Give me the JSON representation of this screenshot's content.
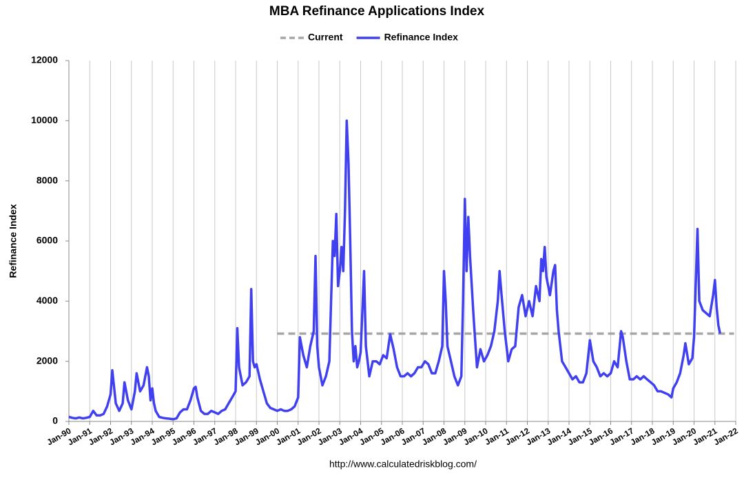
{
  "chart_data": {
    "type": "line",
    "title": "MBA Refinance Applications Index",
    "y_label": "Refinance Index",
    "source": "http://www.calculatedriskblog.com/",
    "ylim": [
      0,
      12000
    ],
    "yticks": [
      0,
      2000,
      4000,
      6000,
      8000,
      10000,
      12000
    ],
    "xlim": [
      "1990-01",
      "2022-01"
    ],
    "xticks": [
      {
        "value": "1990-01",
        "label": "Jan-90"
      },
      {
        "value": "1991-01",
        "label": "Jan-91"
      },
      {
        "value": "1992-01",
        "label": "Jan-92"
      },
      {
        "value": "1993-01",
        "label": "Jan-93"
      },
      {
        "value": "1994-01",
        "label": "Jan-94"
      },
      {
        "value": "1995-01",
        "label": "Jan-95"
      },
      {
        "value": "1996-01",
        "label": "Jan-96"
      },
      {
        "value": "1997-01",
        "label": "Jan-97"
      },
      {
        "value": "1998-01",
        "label": "Jan-98"
      },
      {
        "value": "1999-01",
        "label": "Jan-99"
      },
      {
        "value": "2000-01",
        "label": "Jan-00"
      },
      {
        "value": "2001-01",
        "label": "Jan-01"
      },
      {
        "value": "2002-01",
        "label": "Jan-02"
      },
      {
        "value": "2003-01",
        "label": "Jan-03"
      },
      {
        "value": "2004-01",
        "label": "Jan-04"
      },
      {
        "value": "2005-01",
        "label": "Jan-05"
      },
      {
        "value": "2006-01",
        "label": "Jan-06"
      },
      {
        "value": "2007-01",
        "label": "Jan-07"
      },
      {
        "value": "2008-01",
        "label": "Jan-08"
      },
      {
        "value": "2009-01",
        "label": "Jan-09"
      },
      {
        "value": "2010-01",
        "label": "Jan-10"
      },
      {
        "value": "2011-01",
        "label": "Jan-11"
      },
      {
        "value": "2012-01",
        "label": "Jan-12"
      },
      {
        "value": "2013-01",
        "label": "Jan-13"
      },
      {
        "value": "2014-01",
        "label": "Jan-14"
      },
      {
        "value": "2015-01",
        "label": "Jan-15"
      },
      {
        "value": "2016-01",
        "label": "Jan-16"
      },
      {
        "value": "2017-01",
        "label": "Jan-17"
      },
      {
        "value": "2018-01",
        "label": "Jan-18"
      },
      {
        "value": "2019-01",
        "label": "Jan-19"
      },
      {
        "value": "2020-01",
        "label": "Jan-20"
      },
      {
        "value": "2021-01",
        "label": "Jan-21"
      },
      {
        "value": "2022-01",
        "label": "Jan-22"
      }
    ],
    "grid": "x",
    "series": [
      {
        "name": "Current",
        "color": "#a6a6a6",
        "dashed": true,
        "x": [
          "2000-01",
          "2021-12"
        ],
        "values": [
          2920,
          2920
        ]
      },
      {
        "name": "Refinance Index",
        "color": "#4040f0",
        "dashed": false,
        "x": [
          "1990-01",
          "1990-03",
          "1990-05",
          "1990-07",
          "1990-09",
          "1990-11",
          "1991-01",
          "1991-03",
          "1991-05",
          "1991-07",
          "1991-09",
          "1991-11",
          "1992-01",
          "1992-02",
          "1992-04",
          "1992-06",
          "1992-08",
          "1992-09",
          "1992-11",
          "1993-01",
          "1993-03",
          "1993-04",
          "1993-06",
          "1993-08",
          "1993-10",
          "1993-11",
          "1993-12",
          "1994-01",
          "1994-02",
          "1994-03",
          "1994-05",
          "1994-07",
          "1994-09",
          "1994-11",
          "1995-01",
          "1995-03",
          "1995-05",
          "1995-07",
          "1995-09",
          "1995-11",
          "1996-01",
          "1996-02",
          "1996-03",
          "1996-05",
          "1996-07",
          "1996-09",
          "1996-11",
          "1997-01",
          "1997-03",
          "1997-05",
          "1997-07",
          "1997-09",
          "1997-11",
          "1998-01",
          "1998-02",
          "1998-03",
          "1998-05",
          "1998-07",
          "1998-09",
          "1998-10",
          "1998-11",
          "1998-12",
          "1999-01",
          "1999-03",
          "1999-05",
          "1999-07",
          "1999-09",
          "1999-11",
          "2000-01",
          "2000-03",
          "2000-05",
          "2000-07",
          "2000-09",
          "2000-11",
          "2001-01",
          "2001-02",
          "2001-04",
          "2001-06",
          "2001-08",
          "2001-10",
          "2001-11",
          "2001-12",
          "2002-01",
          "2002-03",
          "2002-05",
          "2002-07",
          "2002-08",
          "2002-09",
          "2002-10",
          "2002-11",
          "2002-12",
          "2003-01",
          "2003-02",
          "2003-03",
          "2003-04",
          "2003-05",
          "2003-06",
          "2003-07",
          "2003-08",
          "2003-09",
          "2003-10",
          "2003-11",
          "2003-12",
          "2004-01",
          "2004-03",
          "2004-04",
          "2004-06",
          "2004-08",
          "2004-10",
          "2004-12",
          "2005-02",
          "2005-04",
          "2005-06",
          "2005-08",
          "2005-10",
          "2005-12",
          "2006-02",
          "2006-04",
          "2006-06",
          "2006-08",
          "2006-10",
          "2006-12",
          "2007-02",
          "2007-04",
          "2007-06",
          "2007-08",
          "2007-10",
          "2007-12",
          "2008-01",
          "2008-02",
          "2008-03",
          "2008-05",
          "2008-07",
          "2008-09",
          "2008-11",
          "2008-12",
          "2009-01",
          "2009-02",
          "2009-03",
          "2009-04",
          "2009-06",
          "2009-08",
          "2009-10",
          "2009-12",
          "2010-02",
          "2010-04",
          "2010-06",
          "2010-08",
          "2010-09",
          "2010-10",
          "2010-12",
          "2011-02",
          "2011-04",
          "2011-06",
          "2011-08",
          "2011-10",
          "2011-12",
          "2012-02",
          "2012-04",
          "2012-06",
          "2012-08",
          "2012-09",
          "2012-10",
          "2012-11",
          "2012-12",
          "2013-01",
          "2013-02",
          "2013-04",
          "2013-05",
          "2013-06",
          "2013-07",
          "2013-09",
          "2013-11",
          "2014-01",
          "2014-03",
          "2014-05",
          "2014-07",
          "2014-09",
          "2014-11",
          "2015-01",
          "2015-03",
          "2015-05",
          "2015-07",
          "2015-09",
          "2015-11",
          "2016-01",
          "2016-03",
          "2016-05",
          "2016-07",
          "2016-08",
          "2016-10",
          "2016-12",
          "2017-02",
          "2017-04",
          "2017-06",
          "2017-08",
          "2017-10",
          "2017-12",
          "2018-02",
          "2018-04",
          "2018-06",
          "2018-08",
          "2018-10",
          "2018-12",
          "2019-01",
          "2019-03",
          "2019-05",
          "2019-07",
          "2019-08",
          "2019-10",
          "2019-12",
          "2020-01",
          "2020-03",
          "2020-04",
          "2020-06",
          "2020-08",
          "2020-10",
          "2020-12",
          "2021-01",
          "2021-02",
          "2021-03",
          "2021-04"
        ],
        "values": [
          150,
          120,
          100,
          130,
          100,
          120,
          150,
          350,
          200,
          200,
          250,
          500,
          900,
          1700,
          600,
          350,
          600,
          1300,
          700,
          400,
          1000,
          1600,
          1000,
          1200,
          1800,
          1500,
          700,
          1100,
          600,
          350,
          150,
          120,
          100,
          90,
          70,
          100,
          300,
          400,
          400,
          700,
          1100,
          1150,
          800,
          350,
          250,
          250,
          350,
          300,
          250,
          350,
          400,
          600,
          800,
          1000,
          3100,
          1800,
          1200,
          1300,
          1500,
          4400,
          2000,
          1800,
          1900,
          1400,
          1000,
          600,
          450,
          400,
          350,
          400,
          350,
          350,
          400,
          500,
          800,
          2800,
          2200,
          1800,
          2500,
          3000,
          5500,
          2500,
          1800,
          1200,
          1500,
          2000,
          4000,
          6000,
          5500,
          6900,
          4500,
          5000,
          5800,
          5000,
          7000,
          10000,
          8600,
          6000,
          3000,
          2000,
          2500,
          1800,
          2000,
          2300,
          5000,
          2500,
          1500,
          2000,
          2000,
          1900,
          2200,
          2100,
          2900,
          2400,
          1800,
          1500,
          1500,
          1600,
          1500,
          1600,
          1800,
          1800,
          2000,
          1900,
          1600,
          1600,
          2000,
          2500,
          5000,
          4000,
          2500,
          2000,
          1500,
          1200,
          1500,
          4000,
          7400,
          5000,
          6800,
          5500,
          3500,
          1800,
          2400,
          2000,
          2200,
          2500,
          3000,
          4000,
          5000,
          4300,
          3000,
          2000,
          2400,
          2500,
          3800,
          4200,
          3500,
          4000,
          3500,
          4500,
          4000,
          5400,
          5000,
          5800,
          4800,
          4500,
          4200,
          5000,
          5200,
          3700,
          3000,
          2000,
          1800,
          1600,
          1400,
          1500,
          1300,
          1300,
          1600,
          2700,
          2000,
          1800,
          1500,
          1600,
          1500,
          1600,
          2000,
          1800,
          3000,
          2800,
          2000,
          1400,
          1400,
          1500,
          1400,
          1500,
          1400,
          1300,
          1200,
          1000,
          1000,
          950,
          900,
          800,
          1100,
          1300,
          1600,
          2200,
          2600,
          1900,
          2100,
          2800,
          6400,
          4000,
          3700,
          3600,
          3500,
          4200,
          4700,
          3800,
          3200,
          2920
        ]
      }
    ]
  }
}
